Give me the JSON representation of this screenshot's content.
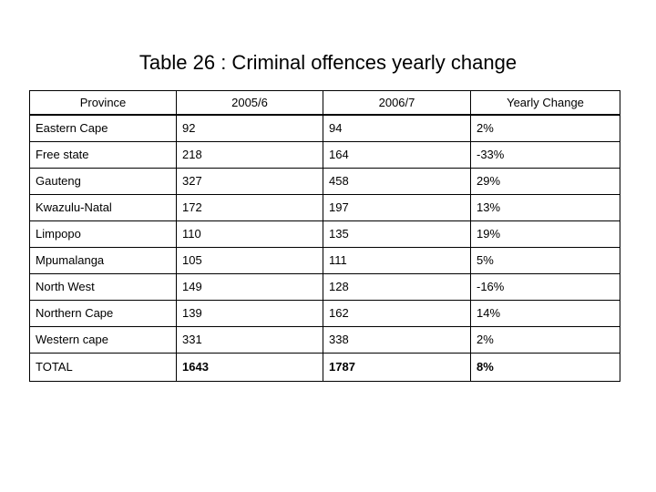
{
  "title": "Table 26 : Criminal offences yearly change",
  "table": {
    "columns": [
      "Province",
      "2005/6",
      "2006/7",
      "Yearly Change"
    ],
    "rows": [
      [
        "Eastern Cape",
        "92",
        "94",
        "2%"
      ],
      [
        "Free state",
        "218",
        "164",
        "-33%"
      ],
      [
        "Gauteng",
        "327",
        "458",
        "29%"
      ],
      [
        "Kwazulu-Natal",
        "172",
        "197",
        "13%"
      ],
      [
        "Limpopo",
        "110",
        "135",
        "19%"
      ],
      [
        "Mpumalanga",
        "105",
        "111",
        "5%"
      ],
      [
        "North West",
        "149",
        "128",
        "-16%"
      ],
      [
        "Northern Cape",
        "139",
        "162",
        "14%"
      ],
      [
        "Western cape",
        "331",
        "338",
        "2%"
      ],
      [
        "TOTAL",
        "1643",
        "1787",
        "8%"
      ]
    ]
  }
}
